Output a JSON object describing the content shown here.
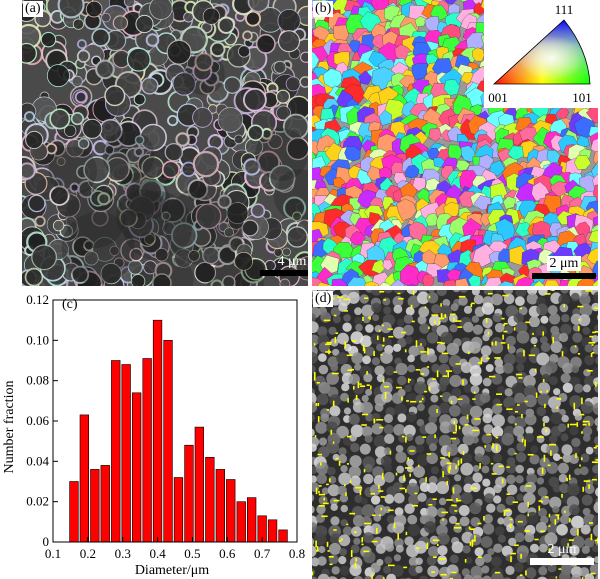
{
  "panels": {
    "a": {
      "label": "(a)",
      "scale_text": "4 μm"
    },
    "b": {
      "label": "(b)",
      "scale_text": "2 μm",
      "ipf_labels": {
        "top": "111",
        "left": "001",
        "right": "101"
      }
    },
    "c": {
      "label": "(c)"
    },
    "d": {
      "label": "(d)",
      "scale_text": "2 μm"
    }
  },
  "chart_data": {
    "type": "bar",
    "x": [
      0.16,
      0.19,
      0.22,
      0.25,
      0.28,
      0.31,
      0.34,
      0.37,
      0.4,
      0.43,
      0.46,
      0.49,
      0.52,
      0.55,
      0.58,
      0.61,
      0.64,
      0.67,
      0.7,
      0.73,
      0.76
    ],
    "values": [
      0.03,
      0.063,
      0.036,
      0.038,
      0.09,
      0.088,
      0.074,
      0.091,
      0.11,
      0.1,
      0.032,
      0.048,
      0.057,
      0.042,
      0.036,
      0.031,
      0.02,
      0.022,
      0.013,
      0.011,
      0.006
    ],
    "xlabel": "Diameter/μm",
    "ylabel": "Number fraction",
    "xlim": [
      0.1,
      0.8
    ],
    "ylim": [
      0,
      0.12
    ],
    "xticks": [
      "0.1",
      "0.2",
      "0.3",
      "0.4",
      "0.5",
      "0.6",
      "0.7",
      "0.8"
    ],
    "yticks": [
      "0",
      "0.02",
      "0.04",
      "0.06",
      "0.08",
      "0.10",
      "0.12"
    ],
    "bar_color": "#ff0000",
    "grid": false
  },
  "colors": {
    "bar": "#ff0000",
    "scale_bar_dark": "#000000",
    "scale_bar_light": "#ffffff",
    "grain_marker": "#ffff00"
  }
}
